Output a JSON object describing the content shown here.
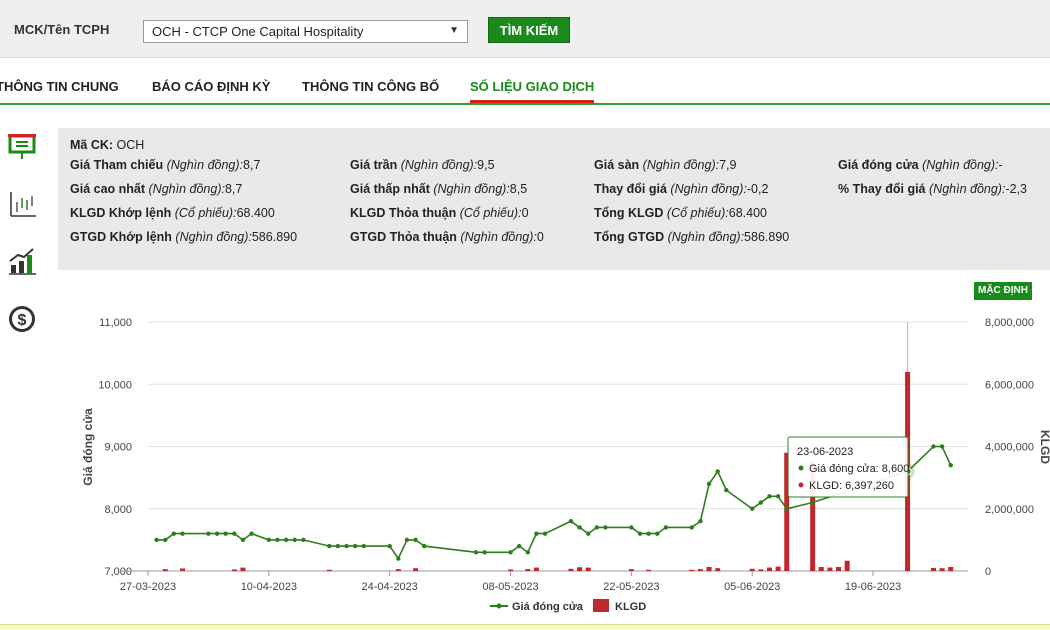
{
  "search": {
    "label": "MCK/Tên TCPH",
    "selected_stock": "OCH - CTCP One Capital Hospitality",
    "button_label": "TÌM KIẾM"
  },
  "tabs": [
    {
      "label": "THÔNG TIN CHUNG",
      "active": false
    },
    {
      "label": "BÁO CÁO ĐỊNH KỲ",
      "active": false
    },
    {
      "label": "THÔNG TIN CÔNG BỐ",
      "active": false
    },
    {
      "label": "SỐ LIỆU GIAO DỊCH",
      "active": true
    }
  ],
  "side_icons": [
    "presentation-icon",
    "candlestick-chart-icon",
    "bar-growth-chart-icon",
    "dollar-icon"
  ],
  "info": {
    "code_label": "Mã CK:",
    "code": "OCH",
    "rows": [
      [
        {
          "label": "Giá Tham chiếu",
          "unit": "(Nghìn đồng):",
          "value": "8,7"
        },
        {
          "label": "Giá trần",
          "unit": "(Nghìn đồng):",
          "value": "9,5"
        },
        {
          "label": "Giá sàn",
          "unit": "(Nghìn đồng):",
          "value": "7,9"
        },
        {
          "label": "Giá đóng cửa",
          "unit": "(Nghìn đồng):",
          "value": "-"
        }
      ],
      [
        {
          "label": "Giá cao nhất",
          "unit": "(Nghìn đồng):",
          "value": "8,7"
        },
        {
          "label": "Giá thấp nhất",
          "unit": "(Nghìn đồng):",
          "value": "8,5"
        },
        {
          "label": "Thay đổi giá",
          "unit": "(Nghìn đồng):",
          "value": "-0,2"
        },
        {
          "label": "% Thay đổi giá",
          "unit": "(Nghìn đồng):",
          "value": "-2,3"
        }
      ],
      [
        {
          "label": "KLGD Khớp lệnh",
          "unit": "(Cổ phiếu):",
          "value": "68.400"
        },
        {
          "label": "KLGD Thỏa thuận",
          "unit": "(Cổ phiếu):",
          "value": "0"
        },
        {
          "label": "Tổng KLGD",
          "unit": "(Cổ phiếu):",
          "value": "68.400"
        }
      ],
      [
        {
          "label": "GTGD Khớp lệnh",
          "unit": "(Nghìn đồng):",
          "value": "586.890"
        },
        {
          "label": "GTGD Thỏa thuận",
          "unit": "(Nghìn đồng):",
          "value": "0"
        },
        {
          "label": "Tổng GTGD",
          "unit": "(Nghìn đồng):",
          "value": "586.890"
        }
      ]
    ]
  },
  "default_button": "MẶC ĐỊNH",
  "colors": {
    "accent_green": "#1a8a1a",
    "price_line": "#2e7d1e",
    "volume_bar": "#c0282d",
    "tab_underline": "#d62020"
  },
  "tooltip": {
    "date": "23-06-2023",
    "price_label": "Giá đóng cửa: 8,600",
    "volume_label": "KLGD: 6,397,260"
  },
  "chart_data": {
    "type": "line",
    "ylabel": "Giá đóng cửa",
    "y2label": "KLGD",
    "ylim": [
      7000,
      11000
    ],
    "y2lim": [
      0,
      8000000
    ],
    "y_ticks": [
      "11,000",
      "10,000",
      "9,000",
      "8,000",
      "7,000"
    ],
    "y2_ticks": [
      "8,000,000",
      "6,000,000",
      "4,000,000",
      "2,000,000",
      "0"
    ],
    "x_ticks": [
      "27-03-2023",
      "10-04-2023",
      "24-04-2023",
      "08-05-2023",
      "22-05-2023",
      "05-06-2023",
      "19-06-2023"
    ],
    "grid": true,
    "legend_position": "bottom",
    "series": [
      {
        "name": "Giá đóng cửa",
        "kind": "line",
        "values": [
          {
            "d": "28-03-2023",
            "v": 7500
          },
          {
            "d": "29-03-2023",
            "v": 7500
          },
          {
            "d": "30-03-2023",
            "v": 7600
          },
          {
            "d": "31-03-2023",
            "v": 7600
          },
          {
            "d": "03-04-2023",
            "v": 7600
          },
          {
            "d": "04-04-2023",
            "v": 7600
          },
          {
            "d": "05-04-2023",
            "v": 7600
          },
          {
            "d": "06-04-2023",
            "v": 7600
          },
          {
            "d": "07-04-2023",
            "v": 7500
          },
          {
            "d": "08-04-2023",
            "v": 7600
          },
          {
            "d": "10-04-2023",
            "v": 7500
          },
          {
            "d": "11-04-2023",
            "v": 7500
          },
          {
            "d": "12-04-2023",
            "v": 7500
          },
          {
            "d": "13-04-2023",
            "v": 7500
          },
          {
            "d": "14-04-2023",
            "v": 7500
          },
          {
            "d": "17-04-2023",
            "v": 7400
          },
          {
            "d": "18-04-2023",
            "v": 7400
          },
          {
            "d": "19-04-2023",
            "v": 7400
          },
          {
            "d": "20-04-2023",
            "v": 7400
          },
          {
            "d": "21-04-2023",
            "v": 7400
          },
          {
            "d": "24-04-2023",
            "v": 7400
          },
          {
            "d": "25-04-2023",
            "v": 7200
          },
          {
            "d": "26-04-2023",
            "v": 7500
          },
          {
            "d": "27-04-2023",
            "v": 7500
          },
          {
            "d": "28-04-2023",
            "v": 7400
          },
          {
            "d": "04-05-2023",
            "v": 7300
          },
          {
            "d": "05-05-2023",
            "v": 7300
          },
          {
            "d": "08-05-2023",
            "v": 7300
          },
          {
            "d": "09-05-2023",
            "v": 7400
          },
          {
            "d": "10-05-2023",
            "v": 7300
          },
          {
            "d": "11-05-2023",
            "v": 7600
          },
          {
            "d": "12-05-2023",
            "v": 7600
          },
          {
            "d": "15-05-2023",
            "v": 7800
          },
          {
            "d": "16-05-2023",
            "v": 7700
          },
          {
            "d": "17-05-2023",
            "v": 7600
          },
          {
            "d": "18-05-2023",
            "v": 7700
          },
          {
            "d": "19-05-2023",
            "v": 7700
          },
          {
            "d": "22-05-2023",
            "v": 7700
          },
          {
            "d": "23-05-2023",
            "v": 7600
          },
          {
            "d": "24-05-2023",
            "v": 7600
          },
          {
            "d": "25-05-2023",
            "v": 7600
          },
          {
            "d": "26-05-2023",
            "v": 7700
          },
          {
            "d": "29-05-2023",
            "v": 7700
          },
          {
            "d": "30-05-2023",
            "v": 7800
          },
          {
            "d": "31-05-2023",
            "v": 8400
          },
          {
            "d": "01-06-2023",
            "v": 8600
          },
          {
            "d": "02-06-2023",
            "v": 8300
          },
          {
            "d": "05-06-2023",
            "v": 8000
          },
          {
            "d": "06-06-2023",
            "v": 8100
          },
          {
            "d": "07-06-2023",
            "v": 8200
          },
          {
            "d": "08-06-2023",
            "v": 8200
          },
          {
            "d": "09-06-2023",
            "v": 8000
          },
          {
            "d": "12-06-2023",
            "v": 8100
          },
          {
            "d": "23-06-2023",
            "v": 8600
          },
          {
            "d": "26-06-2023",
            "v": 9000
          },
          {
            "d": "27-06-2023",
            "v": 9000
          },
          {
            "d": "28-06-2023",
            "v": 8700
          }
        ]
      },
      {
        "name": "KLGD",
        "kind": "bar",
        "values": [
          {
            "d": "29-03-2023",
            "v": 60000
          },
          {
            "d": "31-03-2023",
            "v": 80000
          },
          {
            "d": "06-04-2023",
            "v": 50000
          },
          {
            "d": "07-04-2023",
            "v": 110000
          },
          {
            "d": "17-04-2023",
            "v": 40000
          },
          {
            "d": "25-04-2023",
            "v": 60000
          },
          {
            "d": "27-04-2023",
            "v": 90000
          },
          {
            "d": "08-05-2023",
            "v": 50000
          },
          {
            "d": "10-05-2023",
            "v": 60000
          },
          {
            "d": "11-05-2023",
            "v": 110000
          },
          {
            "d": "15-05-2023",
            "v": 70000
          },
          {
            "d": "16-05-2023",
            "v": 120000
          },
          {
            "d": "17-05-2023",
            "v": 110000
          },
          {
            "d": "22-05-2023",
            "v": 60000
          },
          {
            "d": "24-05-2023",
            "v": 40000
          },
          {
            "d": "29-05-2023",
            "v": 40000
          },
          {
            "d": "30-05-2023",
            "v": 60000
          },
          {
            "d": "31-05-2023",
            "v": 130000
          },
          {
            "d": "01-06-2023",
            "v": 90000
          },
          {
            "d": "05-06-2023",
            "v": 70000
          },
          {
            "d": "06-06-2023",
            "v": 50000
          },
          {
            "d": "07-06-2023",
            "v": 110000
          },
          {
            "d": "08-06-2023",
            "v": 140000
          },
          {
            "d": "09-06-2023",
            "v": 3800000
          },
          {
            "d": "12-06-2023",
            "v": 3500000
          },
          {
            "d": "13-06-2023",
            "v": 130000
          },
          {
            "d": "14-06-2023",
            "v": 110000
          },
          {
            "d": "15-06-2023",
            "v": 130000
          },
          {
            "d": "16-06-2023",
            "v": 330000
          },
          {
            "d": "23-06-2023",
            "v": 6397260
          },
          {
            "d": "26-06-2023",
            "v": 100000
          },
          {
            "d": "27-06-2023",
            "v": 90000
          },
          {
            "d": "28-06-2023",
            "v": 130000
          }
        ]
      }
    ]
  }
}
